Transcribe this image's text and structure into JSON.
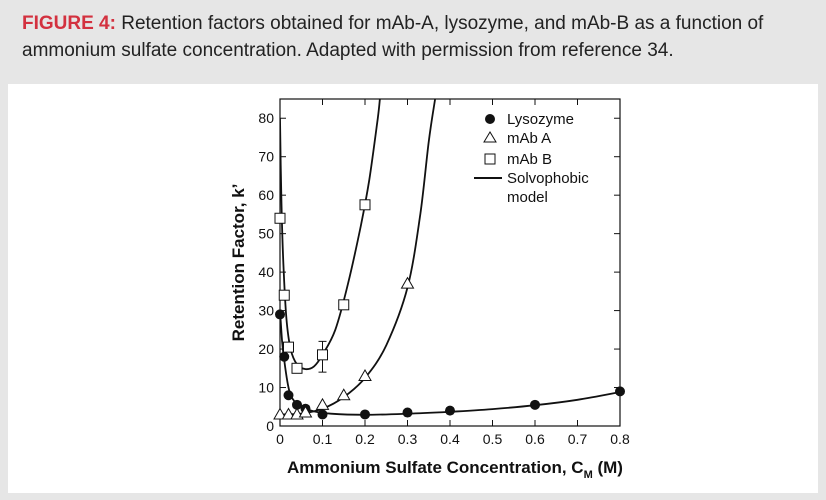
{
  "caption": {
    "label": "FIGURE 4:",
    "text": " Retention factors obtained for mAb-A, lysozyme, and mAb-B as a function of ammonium sulfate concentration. Adapted with permission from reference 34."
  },
  "colors": {
    "caption_label": "#d3313f",
    "background": "#e6e6e6",
    "panel": "#ffffff",
    "ink": "#111111"
  },
  "chart_data": {
    "type": "scatter",
    "xlabel_main": "Ammonium Sulfate Concentration, C",
    "xlabel_sub": "M",
    "xlabel_unit": " (M)",
    "ylabel": "Retention Factor, k’",
    "xlim": [
      0,
      0.8
    ],
    "ylim": [
      0,
      85
    ],
    "x_ticks": [
      "0",
      "0.1",
      "0.2",
      "0.3",
      "0.4",
      "0.5",
      "0.6",
      "0.7",
      "0.8"
    ],
    "x_tick_values": [
      0,
      0.1,
      0.2,
      0.3,
      0.4,
      0.5,
      0.6,
      0.7,
      0.8
    ],
    "y_ticks": [
      "0",
      "10",
      "20",
      "30",
      "40",
      "50",
      "60",
      "70",
      "80"
    ],
    "y_tick_values": [
      0,
      10,
      20,
      30,
      40,
      50,
      60,
      70,
      80
    ],
    "legend_position": "top-right",
    "series": [
      {
        "name": "Lysozyme",
        "marker": "filled-circle",
        "points": [
          [
            0.0,
            29
          ],
          [
            0.01,
            18
          ],
          [
            0.02,
            8
          ],
          [
            0.04,
            5.5
          ],
          [
            0.06,
            4.5
          ],
          [
            0.1,
            3
          ],
          [
            0.2,
            3
          ],
          [
            0.3,
            3.5
          ],
          [
            0.4,
            4
          ],
          [
            0.6,
            5.5
          ],
          [
            0.8,
            9
          ]
        ]
      },
      {
        "name": "mAb A",
        "marker": "open-triangle",
        "points": [
          [
            0.0,
            3
          ],
          [
            0.02,
            3
          ],
          [
            0.04,
            3
          ],
          [
            0.06,
            3.5
          ],
          [
            0.1,
            5.5
          ],
          [
            0.15,
            8
          ],
          [
            0.2,
            13
          ],
          [
            0.3,
            37
          ]
        ]
      },
      {
        "name": "mAb B",
        "marker": "open-square",
        "points": [
          [
            0.0,
            54
          ],
          [
            0.01,
            34
          ],
          [
            0.02,
            20.5
          ],
          [
            0.04,
            15
          ],
          [
            0.1,
            18.5
          ],
          [
            0.15,
            31.5
          ],
          [
            0.2,
            57.5
          ]
        ],
        "error_bars": [
          {
            "x": 0.1,
            "low": 14,
            "high": 22
          }
        ]
      },
      {
        "name": "Solvophobic model",
        "name_lines": [
          "Solvophobic",
          "model"
        ],
        "marker": "line",
        "curves": [
          [
            [
              0.0,
              30
            ],
            [
              0.005,
              22
            ],
            [
              0.01,
              17
            ],
            [
              0.02,
              10
            ],
            [
              0.03,
              7
            ],
            [
              0.05,
              5
            ],
            [
              0.08,
              3.8
            ],
            [
              0.12,
              3.2
            ],
            [
              0.2,
              2.9
            ],
            [
              0.3,
              3.2
            ],
            [
              0.4,
              3.7
            ],
            [
              0.5,
              4.4
            ],
            [
              0.6,
              5.4
            ],
            [
              0.7,
              6.8
            ],
            [
              0.8,
              8.8
            ]
          ],
          [
            [
              0.0,
              3
            ],
            [
              0.05,
              3.2
            ],
            [
              0.1,
              4.5
            ],
            [
              0.15,
              7.5
            ],
            [
              0.2,
              12.5
            ],
            [
              0.25,
              21
            ],
            [
              0.3,
              36
            ],
            [
              0.33,
              55
            ],
            [
              0.35,
              74
            ],
            [
              0.365,
              85
            ]
          ],
          [
            [
              0.0,
              80
            ],
            [
              0.003,
              60
            ],
            [
              0.008,
              42
            ],
            [
              0.015,
              28
            ],
            [
              0.025,
              20
            ],
            [
              0.04,
              16
            ],
            [
              0.06,
              14.8
            ],
            [
              0.08,
              15.5
            ],
            [
              0.1,
              18.5
            ],
            [
              0.13,
              25
            ],
            [
              0.16,
              37
            ],
            [
              0.19,
              52
            ],
            [
              0.21,
              64
            ],
            [
              0.23,
              80
            ],
            [
              0.235,
              85
            ]
          ]
        ]
      }
    ]
  }
}
